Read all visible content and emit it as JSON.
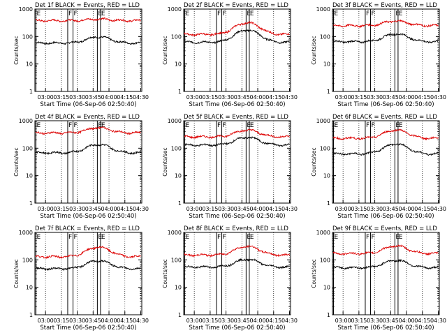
{
  "chart_data": [
    {
      "type": "line",
      "title": "Det 1f BLACK = Events, RED = LLD",
      "xlabel": "Start Time (06-Sep-06 02:50:40)",
      "ylabel": "Counts/sec",
      "yscale": "log",
      "ylim": [
        1,
        1000
      ],
      "xticks": [
        "03:00",
        "03:15",
        "03:30",
        "03:45",
        "04:00",
        "04:15",
        "04:30"
      ],
      "yticks": [
        "1",
        "10",
        "100",
        "1000"
      ],
      "markers": [
        {
          "label": "E",
          "time": "02:51"
        },
        {
          "label": "F",
          "time": "03:21"
        },
        {
          "label": "F",
          "time": "03:26"
        },
        {
          "label": "E",
          "time": "03:49"
        },
        {
          "label": "E",
          "time": "03:52"
        }
      ],
      "series": [
        {
          "name": "BLACK",
          "color": "#000000",
          "base": 58,
          "amp": 40
        },
        {
          "name": "RED",
          "color": "#dd0000",
          "base": 380,
          "amp": 55
        }
      ]
    },
    {
      "type": "line",
      "title": "Det 2f BLACK = Events, RED = LLD",
      "xlabel": "Start Time (06-Sep-06 02:50:40)",
      "ylabel": "Counts/sec",
      "yscale": "log",
      "ylim": [
        1,
        1000
      ],
      "xticks": [
        "03:00",
        "03:15",
        "03:30",
        "03:45",
        "04:00",
        "04:15",
        "04:30"
      ],
      "yticks": [
        "1",
        "10",
        "100",
        "1000"
      ],
      "markers": [
        {
          "label": "E",
          "time": "02:51"
        },
        {
          "label": "F",
          "time": "03:21"
        },
        {
          "label": "F",
          "time": "03:26"
        },
        {
          "label": "E",
          "time": "03:49"
        },
        {
          "label": "E",
          "time": "03:52"
        }
      ],
      "series": [
        {
          "name": "BLACK",
          "color": "#000000",
          "base": 62,
          "amp": 110
        },
        {
          "name": "RED",
          "color": "#dd0000",
          "base": 120,
          "amp": 200
        }
      ]
    },
    {
      "type": "line",
      "title": "Det 3f BLACK = Events, RED = LLD",
      "xlabel": "Start Time (06-Sep-06 02:50:40)",
      "ylabel": "Counts/sec",
      "yscale": "log",
      "ylim": [
        1,
        1000
      ],
      "xticks": [
        "03:00",
        "03:15",
        "03:30",
        "03:45",
        "04:00",
        "04:15",
        "04:30"
      ],
      "yticks": [
        "1",
        "10",
        "100",
        "1000"
      ],
      "markers": [
        {
          "label": "E",
          "time": "02:51"
        },
        {
          "label": "F",
          "time": "03:21"
        },
        {
          "label": "F",
          "time": "03:26"
        },
        {
          "label": "E",
          "time": "03:49"
        },
        {
          "label": "E",
          "time": "03:52"
        }
      ],
      "series": [
        {
          "name": "BLACK",
          "color": "#000000",
          "base": 65,
          "amp": 60
        },
        {
          "name": "RED",
          "color": "#dd0000",
          "base": 250,
          "amp": 120
        }
      ]
    },
    {
      "type": "line",
      "title": "Det 4f BLACK = Events, RED = LLD",
      "xlabel": "Start Time (06-Sep-06 02:50:40)",
      "ylabel": "Counts/sec",
      "yscale": "log",
      "ylim": [
        1,
        1000
      ],
      "xticks": [
        "03:00",
        "03:15",
        "03:30",
        "03:45",
        "04:00",
        "04:15",
        "04:30"
      ],
      "yticks": [
        "1",
        "10",
        "100",
        "1000"
      ],
      "markers": [
        {
          "label": "E",
          "time": "02:51"
        },
        {
          "label": "F",
          "time": "03:21"
        },
        {
          "label": "F",
          "time": "03:26"
        },
        {
          "label": "E",
          "time": "03:49"
        },
        {
          "label": "E",
          "time": "03:52"
        }
      ],
      "series": [
        {
          "name": "BLACK",
          "color": "#000000",
          "base": 68,
          "amp": 70
        },
        {
          "name": "RED",
          "color": "#dd0000",
          "base": 360,
          "amp": 200
        }
      ]
    },
    {
      "type": "line",
      "title": "Det 5f BLACK = Events, RED = LLD",
      "xlabel": "Start Time (06-Sep-06 02:50:40)",
      "ylabel": "Counts/sec",
      "yscale": "log",
      "ylim": [
        1,
        1000
      ],
      "xticks": [
        "03:00",
        "03:15",
        "03:30",
        "03:45",
        "04:00",
        "04:15",
        "04:30"
      ],
      "yticks": [
        "1",
        "10",
        "100",
        "1000"
      ],
      "markers": [
        {
          "label": "E",
          "time": "02:51"
        },
        {
          "label": "F",
          "time": "03:21"
        },
        {
          "label": "F",
          "time": "03:26"
        },
        {
          "label": "E",
          "time": "03:49"
        },
        {
          "label": "E",
          "time": "03:52"
        }
      ],
      "series": [
        {
          "name": "BLACK",
          "color": "#000000",
          "base": 130,
          "amp": 120
        },
        {
          "name": "RED",
          "color": "#dd0000",
          "base": 260,
          "amp": 200
        }
      ]
    },
    {
      "type": "line",
      "title": "Det 6f BLACK = Events, RED = LLD",
      "xlabel": "Start Time (06-Sep-06 02:50:40)",
      "ylabel": "Counts/sec",
      "yscale": "log",
      "ylim": [
        1,
        1000
      ],
      "xticks": [
        "03:00",
        "03:15",
        "03:30",
        "03:45",
        "04:00",
        "04:15",
        "04:30"
      ],
      "yticks": [
        "1",
        "10",
        "100",
        "1000"
      ],
      "markers": [
        {
          "label": "E",
          "time": "02:51"
        },
        {
          "label": "F",
          "time": "03:21"
        },
        {
          "label": "F",
          "time": "03:26"
        },
        {
          "label": "E",
          "time": "03:49"
        },
        {
          "label": "E",
          "time": "03:52"
        }
      ],
      "series": [
        {
          "name": "BLACK",
          "color": "#000000",
          "base": 62,
          "amp": 80
        },
        {
          "name": "RED",
          "color": "#dd0000",
          "base": 230,
          "amp": 230
        }
      ]
    },
    {
      "type": "line",
      "title": "Det 7f BLACK = Events, RED = LLD",
      "xlabel": "Start Time (06-Sep-06 02:50:40)",
      "ylabel": "Counts/sec",
      "yscale": "log",
      "ylim": [
        1,
        1000
      ],
      "xticks": [
        "03:00",
        "03:15",
        "03:30",
        "03:45",
        "04:00",
        "04:15",
        "04:30"
      ],
      "yticks": [
        "1",
        "10",
        "100",
        "1000"
      ],
      "markers": [
        {
          "label": "E",
          "time": "02:51"
        },
        {
          "label": "F",
          "time": "03:21"
        },
        {
          "label": "F",
          "time": "03:26"
        },
        {
          "label": "E",
          "time": "03:49"
        },
        {
          "label": "E",
          "time": "03:52"
        }
      ],
      "series": [
        {
          "name": "BLACK",
          "color": "#000000",
          "base": 48,
          "amp": 45
        },
        {
          "name": "RED",
          "color": "#dd0000",
          "base": 130,
          "amp": 160
        }
      ]
    },
    {
      "type": "line",
      "title": "Det 8f BLACK = Events, RED = LLD",
      "xlabel": "Start Time (06-Sep-06 02:50:40)",
      "ylabel": "Counts/sec",
      "yscale": "log",
      "ylim": [
        1,
        1000
      ],
      "xticks": [
        "03:00",
        "03:15",
        "03:30",
        "03:45",
        "04:00",
        "04:15",
        "04:30"
      ],
      "yticks": [
        "1",
        "10",
        "100",
        "1000"
      ],
      "markers": [
        {
          "label": "E",
          "time": "02:51"
        },
        {
          "label": "F",
          "time": "03:21"
        },
        {
          "label": "F",
          "time": "03:26"
        },
        {
          "label": "E",
          "time": "03:49"
        },
        {
          "label": "E",
          "time": "03:52"
        }
      ],
      "series": [
        {
          "name": "BLACK",
          "color": "#000000",
          "base": 55,
          "amp": 50
        },
        {
          "name": "RED",
          "color": "#dd0000",
          "base": 150,
          "amp": 160
        }
      ]
    },
    {
      "type": "line",
      "title": "Det 9f BLACK = Events, RED = LLD",
      "xlabel": "Start Time (06-Sep-06 02:50:40)",
      "ylabel": "Counts/sec",
      "yscale": "log",
      "ylim": [
        1,
        1000
      ],
      "xticks": [
        "03:00",
        "03:15",
        "03:30",
        "03:45",
        "04:00",
        "04:15",
        "04:30"
      ],
      "yticks": [
        "1",
        "10",
        "100",
        "1000"
      ],
      "markers": [
        {
          "label": "E",
          "time": "02:51"
        },
        {
          "label": "F",
          "time": "03:21"
        },
        {
          "label": "F",
          "time": "03:26"
        },
        {
          "label": "E",
          "time": "03:49"
        },
        {
          "label": "E",
          "time": "03:52"
        }
      ],
      "series": [
        {
          "name": "BLACK",
          "color": "#000000",
          "base": 52,
          "amp": 45
        },
        {
          "name": "RED",
          "color": "#dd0000",
          "base": 170,
          "amp": 150
        }
      ]
    }
  ]
}
